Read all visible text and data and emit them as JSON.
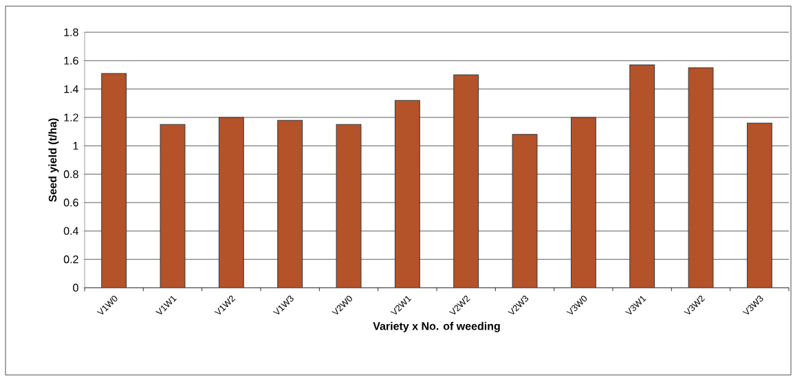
{
  "chart_data": {
    "type": "bar",
    "xlabel": "Variety x No. of weeding",
    "ylabel": "Seed yield (t/ha)",
    "categories": [
      "V1W0",
      "V1W1",
      "V1W2",
      "V1W3",
      "V2W0",
      "V2W1",
      "V2W2",
      "V2W3",
      "V3W0",
      "V3W1",
      "V3W2",
      "V3W3"
    ],
    "values": [
      1.51,
      1.15,
      1.2,
      1.18,
      1.15,
      1.32,
      1.5,
      1.08,
      1.2,
      1.57,
      1.55,
      1.16
    ],
    "color": "#b4522a",
    "ylim": [
      0,
      1.8
    ],
    "yticks": [
      0,
      0.2,
      0.4,
      0.6,
      0.8,
      1,
      1.2,
      1.4,
      1.6,
      1.8
    ],
    "grid": "y"
  }
}
